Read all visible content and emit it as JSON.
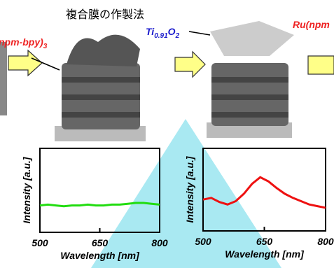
{
  "title": "複合膜の作製法",
  "label_left": {
    "text": "npm-bpy)",
    "sub": "3"
  },
  "label_middle": {
    "text1": "Ti",
    "sub1": "0.91",
    "text2": "O",
    "sub2": "2"
  },
  "label_right": {
    "text": "Ru(npm"
  },
  "chart_data": [
    {
      "type": "line",
      "xlabel": "Wavelength [nm]",
      "ylabel": "Intensity [a.u.]",
      "color": "#22dd11",
      "x": [
        500,
        520,
        540,
        560,
        580,
        600,
        620,
        640,
        660,
        680,
        700,
        720,
        740,
        760,
        780,
        800
      ],
      "values": [
        0.32,
        0.33,
        0.32,
        0.31,
        0.32,
        0.32,
        0.33,
        0.32,
        0.32,
        0.33,
        0.33,
        0.34,
        0.35,
        0.35,
        0.34,
        0.33
      ],
      "xlim": [
        500,
        800
      ],
      "xticks": [
        500,
        650,
        800
      ],
      "ylim": [
        0,
        1
      ]
    },
    {
      "type": "line",
      "xlabel": "Wavelength [nm]",
      "ylabel": "Intensity [a.u.]",
      "color": "#ee1111",
      "x": [
        500,
        520,
        540,
        560,
        580,
        600,
        620,
        640,
        660,
        680,
        700,
        720,
        740,
        760,
        780,
        800
      ],
      "values": [
        0.38,
        0.4,
        0.35,
        0.32,
        0.36,
        0.45,
        0.57,
        0.65,
        0.6,
        0.52,
        0.45,
        0.4,
        0.36,
        0.32,
        0.3,
        0.28
      ],
      "xlim": [
        500,
        800
      ],
      "xticks": [
        500,
        650,
        800
      ],
      "ylim": [
        0,
        1
      ]
    }
  ]
}
